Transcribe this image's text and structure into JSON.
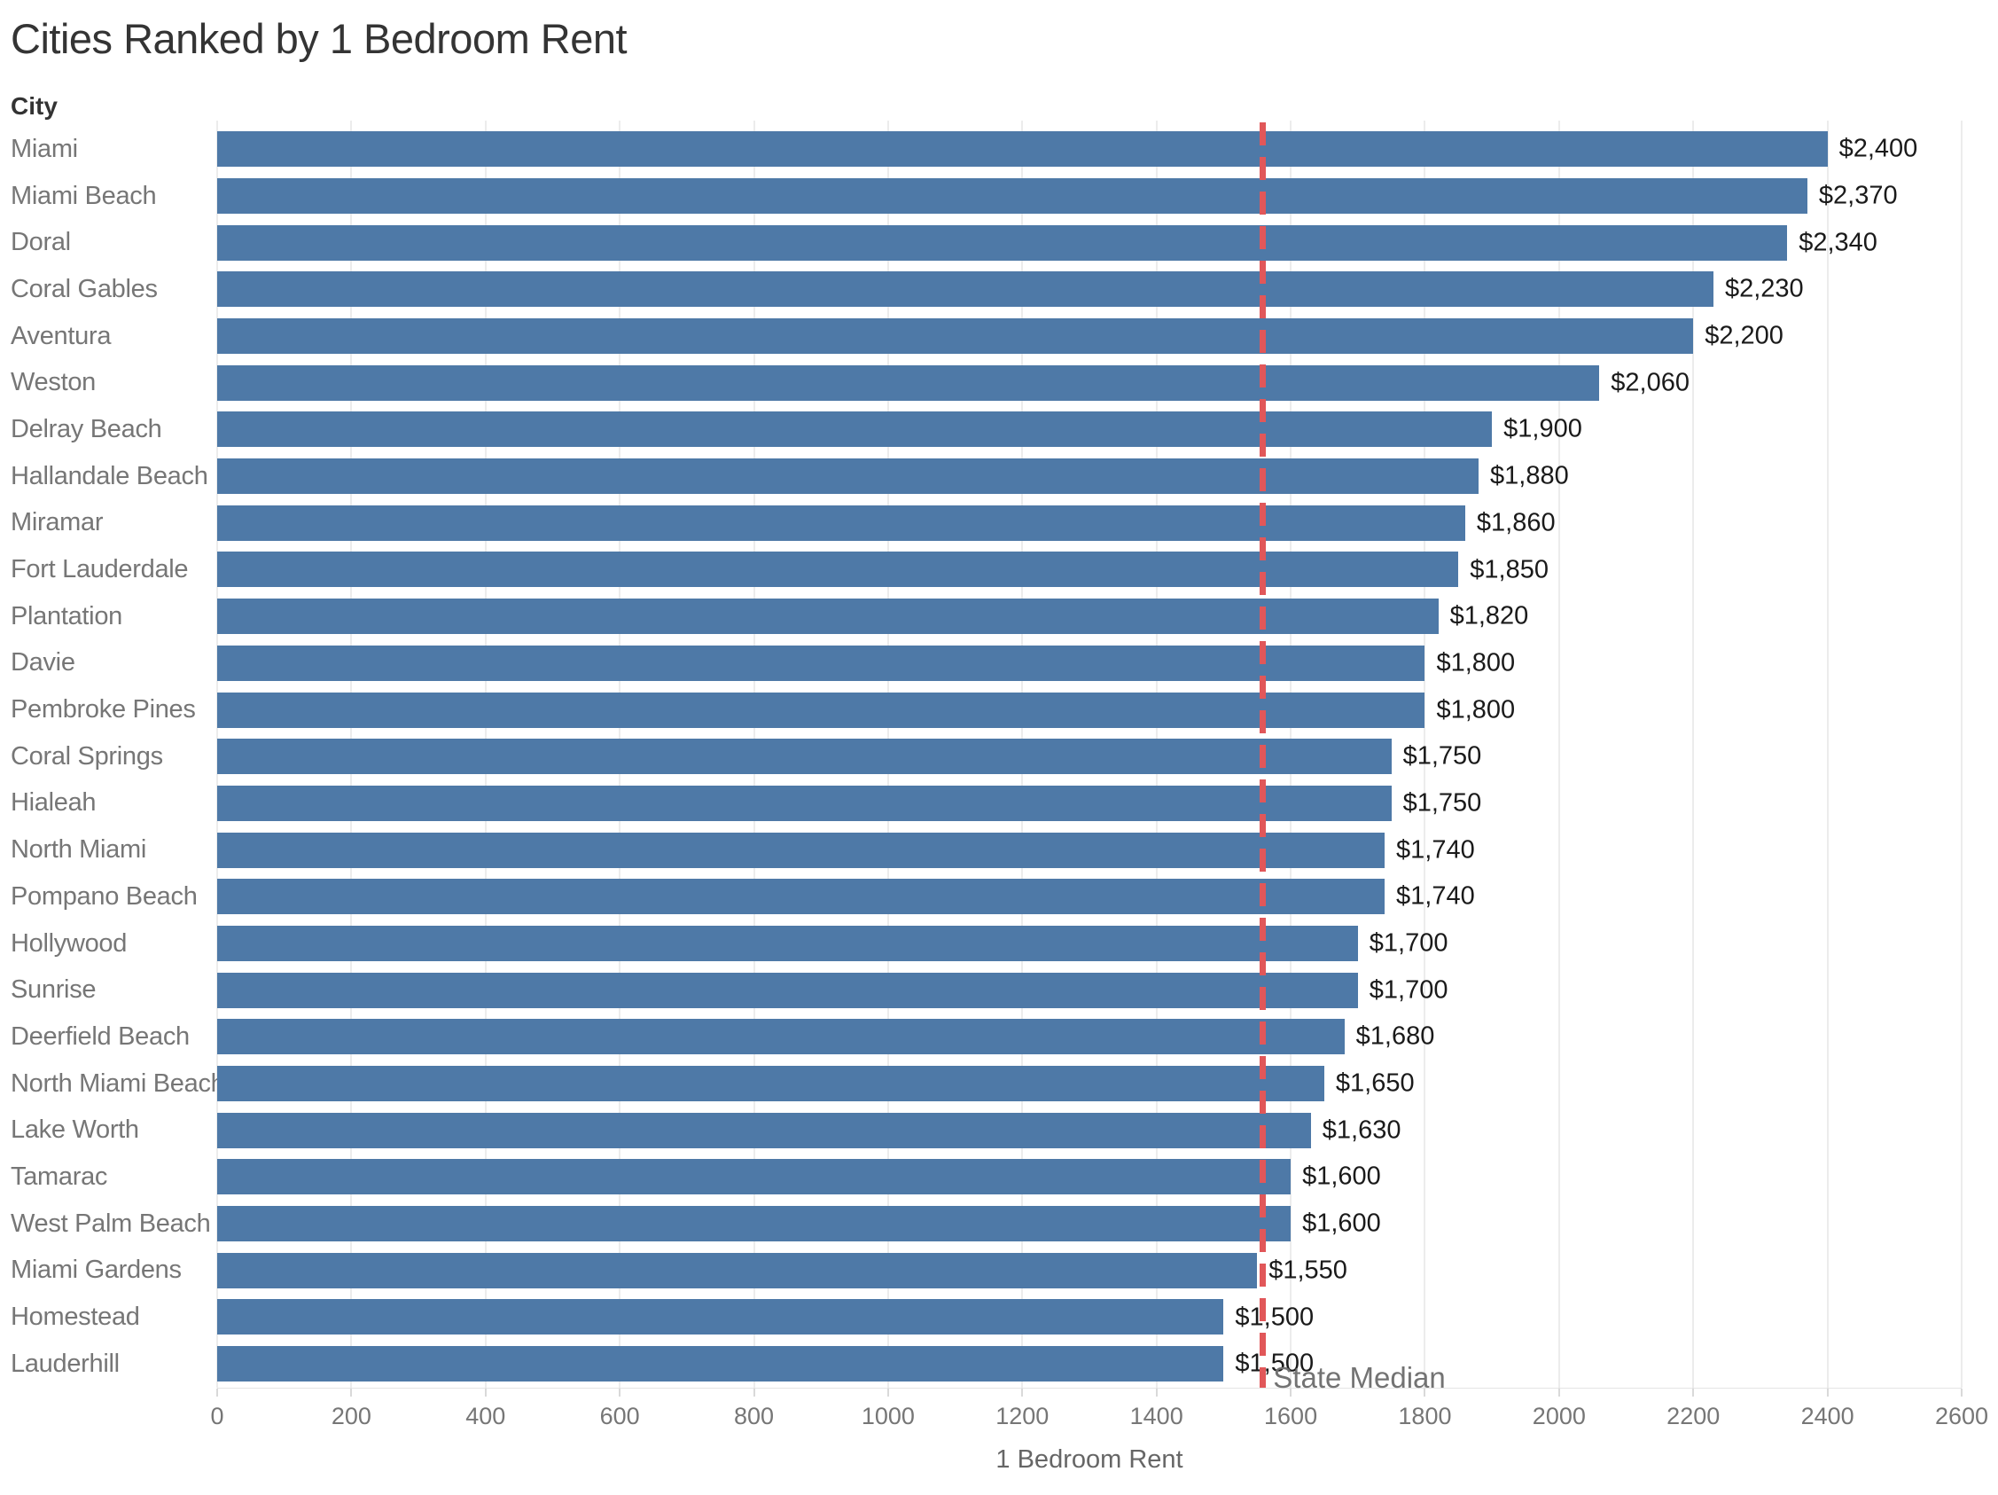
{
  "colors": {
    "bar": "#4e79a7",
    "reference_line": "#e15759",
    "gridline": "#ececec",
    "title_text": "#343434",
    "category_text": "#767676",
    "value_text": "#1a1a1a",
    "reference_label_text": "#737373"
  },
  "chart_data": {
    "type": "bar",
    "orientation": "horizontal",
    "title": "Cities Ranked by 1 Bedroom Rent",
    "ylabel": "City",
    "xlabel": "1 Bedroom Rent",
    "xlim": [
      0,
      2600
    ],
    "xticks": [
      0,
      200,
      400,
      600,
      800,
      1000,
      1200,
      1400,
      1600,
      1800,
      2000,
      2200,
      2400,
      2600
    ],
    "grid": "vertical",
    "legend": "none",
    "categories": [
      "Miami",
      "Miami Beach",
      "Doral",
      "Coral Gables",
      "Aventura",
      "Weston",
      "Delray Beach",
      "Hallandale Beach",
      "Miramar",
      "Fort Lauderdale",
      "Plantation",
      "Davie",
      "Pembroke Pines",
      "Coral Springs",
      "Hialeah",
      "North Miami",
      "Pompano Beach",
      "Hollywood",
      "Sunrise",
      "Deerfield Beach",
      "North Miami Beach",
      "Lake Worth",
      "Tamarac",
      "West Palm Beach",
      "Miami Gardens",
      "Homestead",
      "Lauderhill"
    ],
    "values": [
      2400,
      2370,
      2340,
      2230,
      2200,
      2060,
      1900,
      1880,
      1860,
      1850,
      1820,
      1800,
      1800,
      1750,
      1750,
      1740,
      1740,
      1700,
      1700,
      1680,
      1650,
      1630,
      1600,
      1600,
      1550,
      1500,
      1500
    ],
    "value_labels": [
      "$2,400",
      "$2,370",
      "$2,340",
      "$2,230",
      "$2,200",
      "$2,060",
      "$1,900",
      "$1,880",
      "$1,860",
      "$1,850",
      "$1,820",
      "$1,800",
      "$1,800",
      "$1,750",
      "$1,750",
      "$1,740",
      "$1,740",
      "$1,700",
      "$1,700",
      "$1,680",
      "$1,650",
      "$1,630",
      "$1,600",
      "$1,600",
      "$1,550",
      "$1,500",
      "$1,500"
    ],
    "reference_line": {
      "label": "State Median",
      "value": 1558,
      "style": "dashed"
    }
  }
}
